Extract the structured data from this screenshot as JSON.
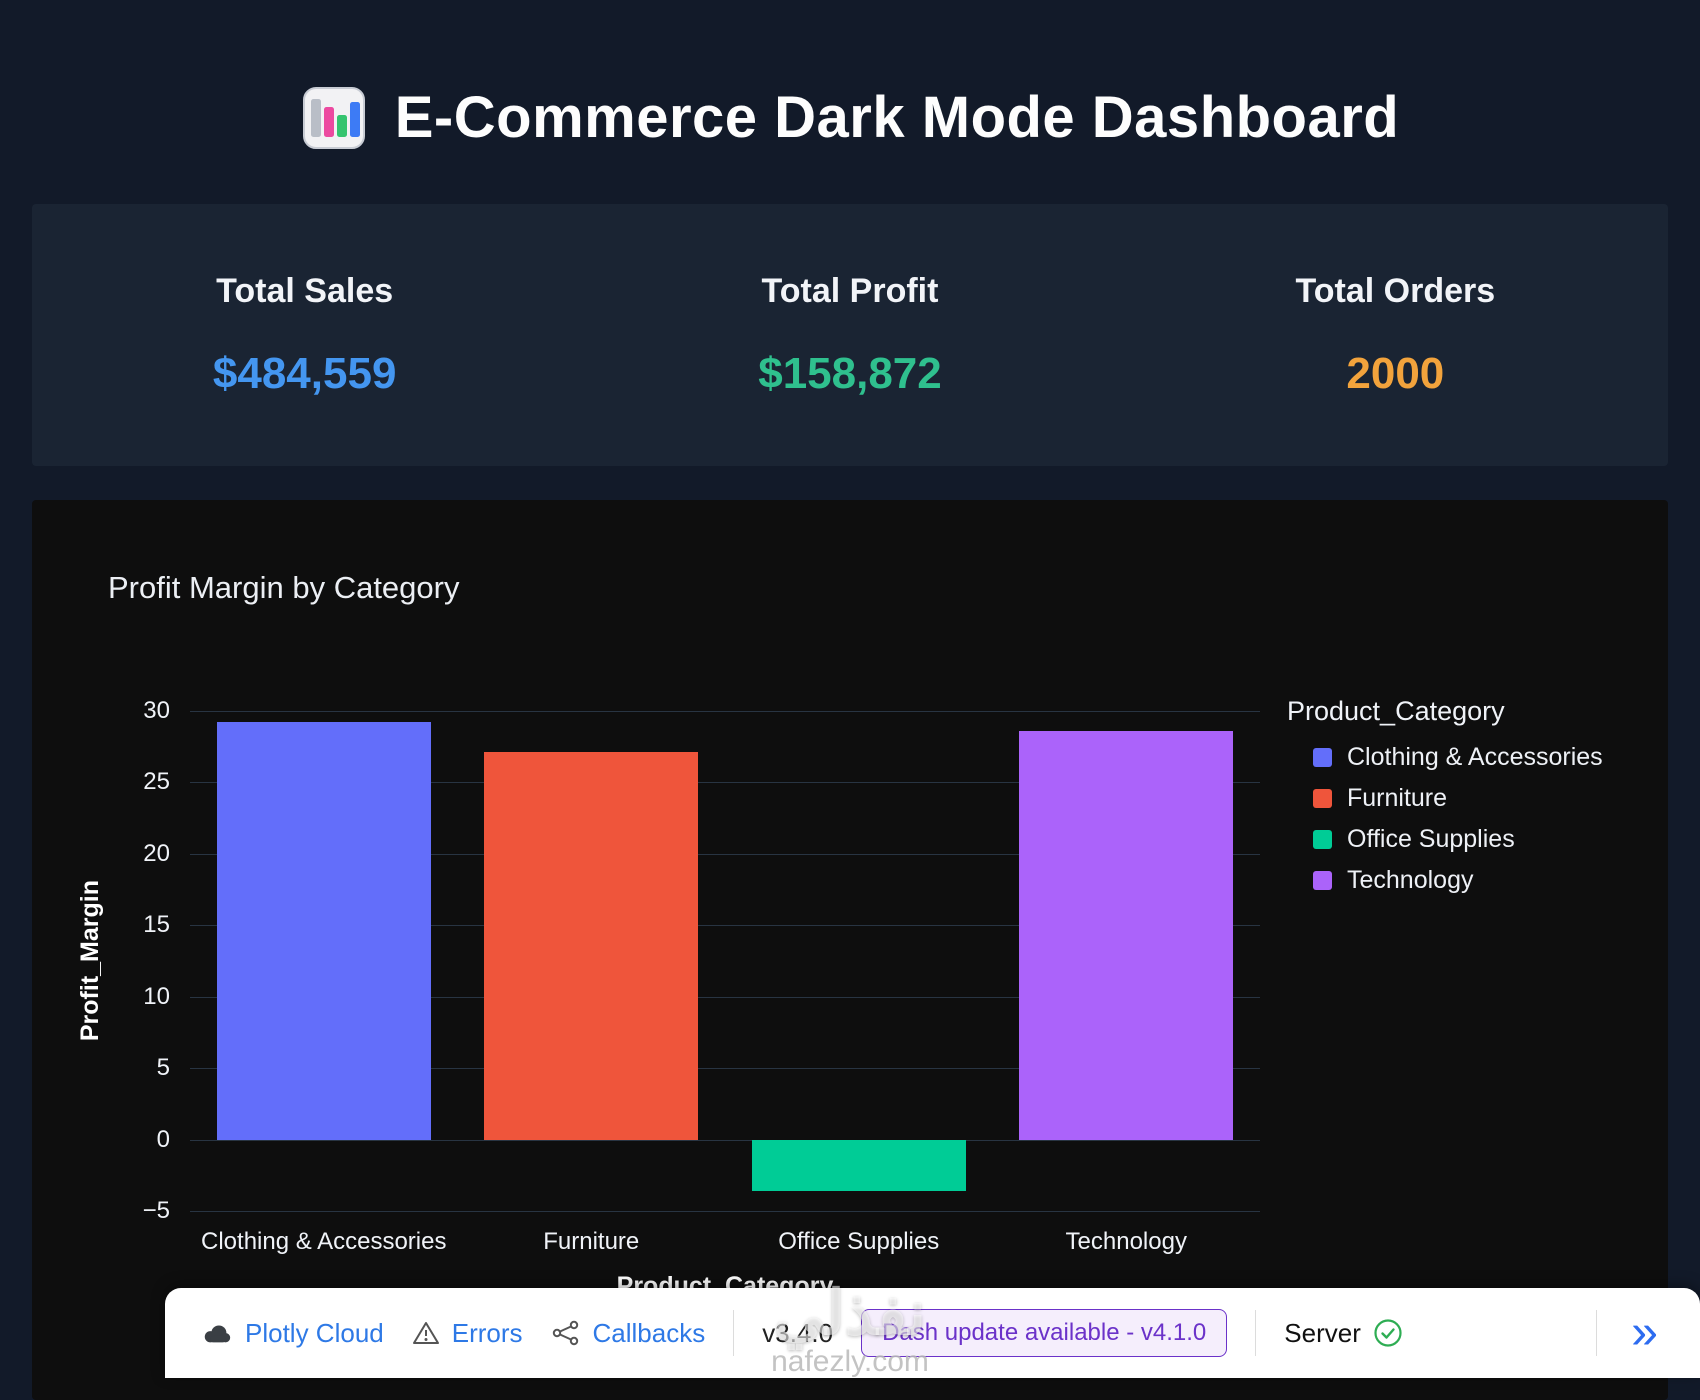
{
  "page": {
    "title": "E-Commerce Dark Mode Dashboard"
  },
  "stats": [
    {
      "label": "Total Sales",
      "value": "$484,559",
      "color": "#4496f0"
    },
    {
      "label": "Total Profit",
      "value": "$158,872",
      "color": "#2fc08e"
    },
    {
      "label": "Total Orders",
      "value": "2000",
      "color": "#f2a33c"
    }
  ],
  "chart_data": {
    "type": "bar",
    "title": "Profit Margin by Category",
    "xlabel": "Product_Category",
    "ylabel": "Profit_Margin",
    "ylim": [
      -5,
      30
    ],
    "yticks": [
      30,
      25,
      20,
      15,
      10,
      5,
      0,
      -5
    ],
    "categories": [
      "Clothing & Accessories",
      "Furniture",
      "Office Supplies",
      "Technology"
    ],
    "values": [
      29.2,
      27.1,
      -3.6,
      28.6
    ],
    "colors": [
      "#636efa",
      "#ef553b",
      "#00cc96",
      "#ab63fa"
    ],
    "grid": true,
    "legend_position": "right",
    "legend_title": "Product_Category",
    "legend": [
      {
        "label": "Clothing & Accessories",
        "color": "#636efa"
      },
      {
        "label": "Furniture",
        "color": "#ef553b"
      },
      {
        "label": "Office Supplies",
        "color": "#00cc96"
      },
      {
        "label": "Technology",
        "color": "#ab63fa"
      }
    ],
    "background": "#0e0e0e",
    "gridline_color": "#283442"
  },
  "devtools": {
    "items": [
      {
        "icon": "cloud-icon",
        "label": "Plotly Cloud"
      },
      {
        "icon": "warning-icon",
        "label": "Errors"
      },
      {
        "icon": "callbacks-icon",
        "label": "Callbacks"
      }
    ],
    "version": "v3.4.0",
    "update_label": "Dash update available - v4.1.0",
    "server_label": "Server",
    "collapse_glyph": "»",
    "link_color": "#2e79e6",
    "update_color": "#6b32c9",
    "server_ok_color": "#2ead53"
  },
  "watermark": {
    "line1": "نفذلي",
    "line2": "nafezly.com"
  }
}
